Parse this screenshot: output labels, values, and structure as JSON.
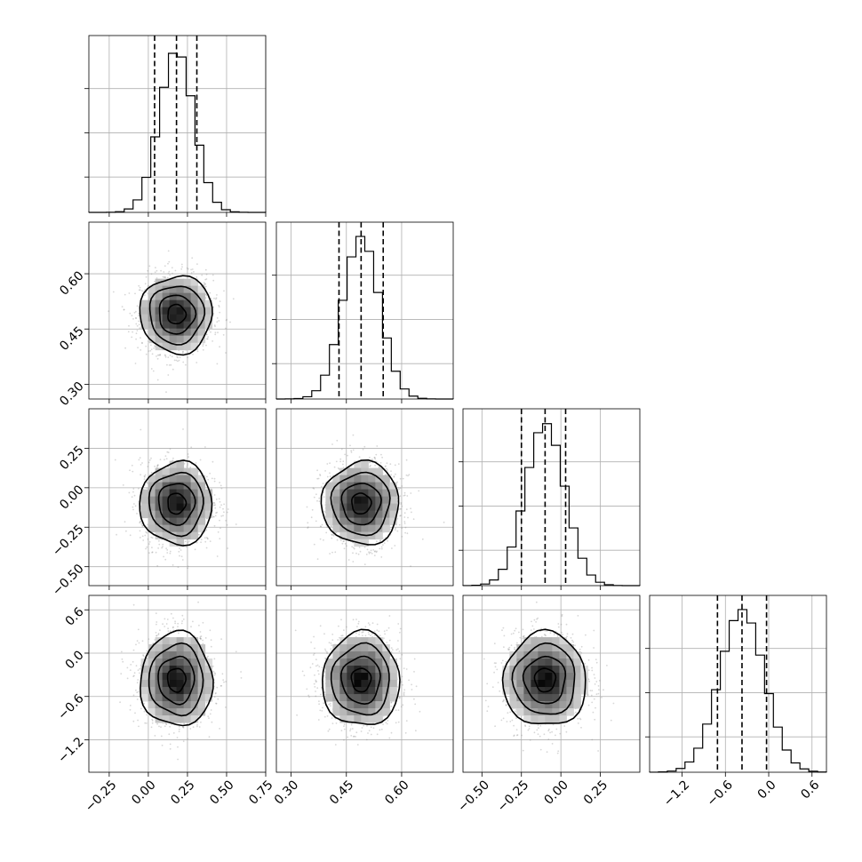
{
  "chart_data": {
    "type": "corner",
    "grid": true,
    "colors": {
      "line": "#000000",
      "grid": "#b0b0b0",
      "points": "#8c8c8c"
    },
    "parameters": [
      {
        "mean": 0.18,
        "std": 0.11,
        "range": [
          -0.38,
          0.75
        ],
        "quantiles": [
          0.04,
          0.18,
          0.31
        ],
        "ticks": [
          -0.25,
          0.0,
          0.25,
          0.5,
          0.75
        ],
        "tick_labels": [
          "−0.25",
          "0.00",
          "0.25",
          "0.50",
          "0.75"
        ]
      },
      {
        "mean": 0.49,
        "std": 0.05,
        "range": [
          0.26,
          0.74
        ],
        "quantiles": [
          0.43,
          0.49,
          0.55
        ],
        "ticks": [
          0.3,
          0.45,
          0.6
        ],
        "tick_labels": [
          "0.30",
          "0.45",
          "0.60"
        ]
      },
      {
        "mean": -0.1,
        "std": 0.125,
        "range": [
          -0.62,
          0.5
        ],
        "quantiles": [
          -0.25,
          -0.1,
          0.03
        ],
        "ticks": [
          -0.5,
          -0.25,
          0.0,
          0.25
        ],
        "tick_labels": [
          "−0.50",
          "−0.25",
          "0.00",
          "0.25"
        ]
      },
      {
        "mean": -0.37,
        "std": 0.31,
        "range": [
          -1.65,
          0.8
        ],
        "quantiles": [
          -0.71,
          -0.37,
          -0.03
        ],
        "ticks": [
          -1.2,
          -0.6,
          0.0,
          0.6
        ],
        "tick_labels": [
          "−1.2",
          "−0.6",
          "0.0",
          "0.6"
        ]
      }
    ],
    "contour_levels_sigma": [
      0.5,
      1.0,
      1.5,
      2.0
    ]
  }
}
